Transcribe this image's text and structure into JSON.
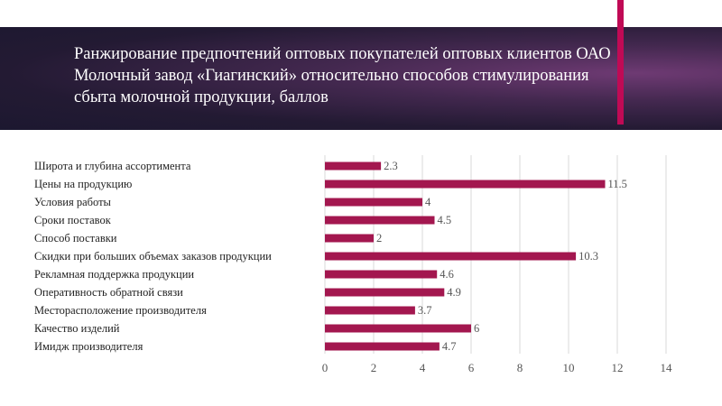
{
  "slide": {
    "title": "Ранжирование предпочтений оптовых покупателей оптовых клиентов ОАО Молочный завод «Гиагинский» относительно способов стимулирования сбыта молочной продукции, баллов",
    "accent_color": "#c00a55"
  },
  "chart_data": {
    "type": "bar",
    "orientation": "horizontal",
    "title": "",
    "xlabel": "",
    "ylabel": "",
    "categories": [
      "Широта и глубина ассортимента",
      "Цены на продукцию",
      "Условия работы",
      "Сроки поставок",
      "Способ поставки",
      "Скидки при больших объемах заказов продукции",
      "Рекламная поддержка продукции",
      "Оперативность обратной связи",
      "Месторасположение производителя",
      "Качество изделий",
      "Имидж производителя"
    ],
    "values": [
      2.3,
      11.5,
      4,
      4.5,
      2,
      10.3,
      4.6,
      4.9,
      3.7,
      6,
      4.7
    ],
    "xlim": [
      0,
      14
    ],
    "xticks": [
      0,
      2,
      4,
      6,
      8,
      10,
      12,
      14
    ],
    "grid": true,
    "bar_color": "#a3174f",
    "data_labels": true
  }
}
